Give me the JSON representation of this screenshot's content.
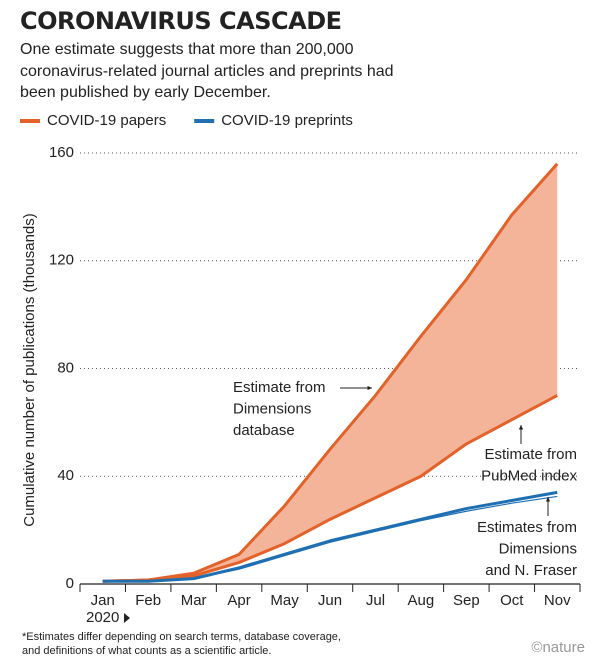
{
  "chart_data": {
    "type": "line",
    "title": "CORONAVIRUS CASCADE",
    "subtitle": [
      "One estimate suggests that more than 200,000",
      "coronavirus-related journal articles and preprints had",
      "been published by early December."
    ],
    "ylabel": "Cumulative number of publications (thousands)",
    "year_label": "2020",
    "footnote": [
      "*Estimates differ depending on search terms, database coverage,",
      "and definitions of what counts as a scientific article."
    ],
    "credit": "©nature",
    "categories": [
      "Jan",
      "Feb",
      "Mar",
      "Apr",
      "May",
      "Jun",
      "Jul",
      "Aug",
      "Sep",
      "Oct",
      "Nov"
    ],
    "ylim": [
      0,
      170
    ],
    "yticks": [
      0,
      40,
      80,
      120,
      160
    ],
    "grid": true,
    "legend": [
      {
        "name": "COVID-19 papers",
        "color": "#e2622a"
      },
      {
        "name": "COVID-19 preprints",
        "color": "#1f6fb2"
      }
    ],
    "fill_between": {
      "series": [
        0,
        1
      ],
      "color": "#f4b49a"
    },
    "series": [
      {
        "color": "#e2622a",
        "width": 3,
        "values": [
          1,
          1.5,
          4,
          11,
          29,
          50,
          70,
          92,
          113,
          137,
          156
        ],
        "annotation": [
          "Estimate from",
          "Dimensions",
          "database"
        ]
      },
      {
        "color": "#e2622a",
        "width": 3,
        "values": [
          1,
          1.5,
          3,
          8,
          15,
          24,
          32,
          40,
          52,
          61,
          70
        ],
        "annotation": [
          "Estimate from",
          "PubMed index"
        ]
      },
      {
        "color": "#1f6fb2",
        "width": 3,
        "values": [
          1,
          1,
          2,
          6,
          11,
          16,
          20,
          24,
          28,
          31,
          34
        ]
      },
      {
        "color": "#1f6fb2",
        "width": 1.2,
        "values": [
          1,
          1,
          2,
          5.5,
          10.5,
          15.5,
          19.5,
          23.5,
          27,
          30,
          32.5
        ],
        "annotation": [
          "Estimates from",
          "Dimensions",
          "and N. Fraser"
        ]
      }
    ]
  }
}
